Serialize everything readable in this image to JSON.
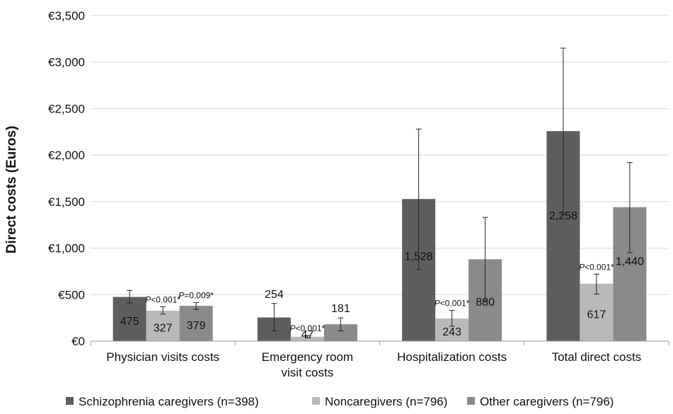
{
  "chart_data": {
    "type": "bar",
    "ylabel": "Direct costs (Euros)",
    "ylim": [
      0,
      3500
    ],
    "yticks": [
      0,
      500,
      1000,
      1500,
      2000,
      2500,
      3000,
      3500
    ],
    "ytick_labels": [
      "€0",
      "€500",
      "€1,000",
      "€1,500",
      "€2,000",
      "€2,500",
      "€3,000",
      "€3,500"
    ],
    "categories": [
      "Physician visits costs",
      "Emergency room visit costs",
      "Hospitalization costs",
      "Total direct costs"
    ],
    "category_lines": [
      [
        "Physician visits costs"
      ],
      [
        "Emergency room",
        "visit  costs"
      ],
      [
        "Hospitalization costs"
      ],
      [
        "Total direct costs"
      ]
    ],
    "series": [
      {
        "name": "Schizophrenia caregivers (n=398)",
        "color": "#5e5e5e",
        "values": [
          475,
          254,
          1528,
          2258
        ],
        "labels": [
          "475",
          "254",
          "1,528",
          "2,258"
        ],
        "error_low": [
          410,
          110,
          770,
          1360
        ],
        "error_high": [
          545,
          405,
          2280,
          3150
        ]
      },
      {
        "name": "Noncaregivers (n=796)",
        "color": "#b9b9b9",
        "values": [
          327,
          47,
          243,
          617
        ],
        "labels": [
          "327",
          "47",
          "243",
          "617"
        ],
        "error_low": [
          290,
          35,
          160,
          505
        ],
        "error_high": [
          370,
          60,
          330,
          720
        ]
      },
      {
        "name": "Other caregivers (n=796)",
        "color": "#8a8a8a",
        "values": [
          379,
          181,
          880,
          1440
        ],
        "labels": [
          "379",
          "181",
          "880",
          "1,440"
        ],
        "error_low": [
          340,
          110,
          430,
          950
        ],
        "error_high": [
          415,
          250,
          1330,
          1920
        ]
      }
    ],
    "annotations": [
      {
        "category": 0,
        "series": 1,
        "text": "P<0.001*"
      },
      {
        "category": 0,
        "series": 2,
        "text": "P=0.009*"
      },
      {
        "category": 1,
        "series": 1,
        "text": "P<0.001*"
      },
      {
        "category": 2,
        "series": 1,
        "text": "P<0.001*"
      },
      {
        "category": 3,
        "series": 1,
        "text": "P<0.001*"
      }
    ],
    "grid": true,
    "legend_position": "bottom"
  }
}
